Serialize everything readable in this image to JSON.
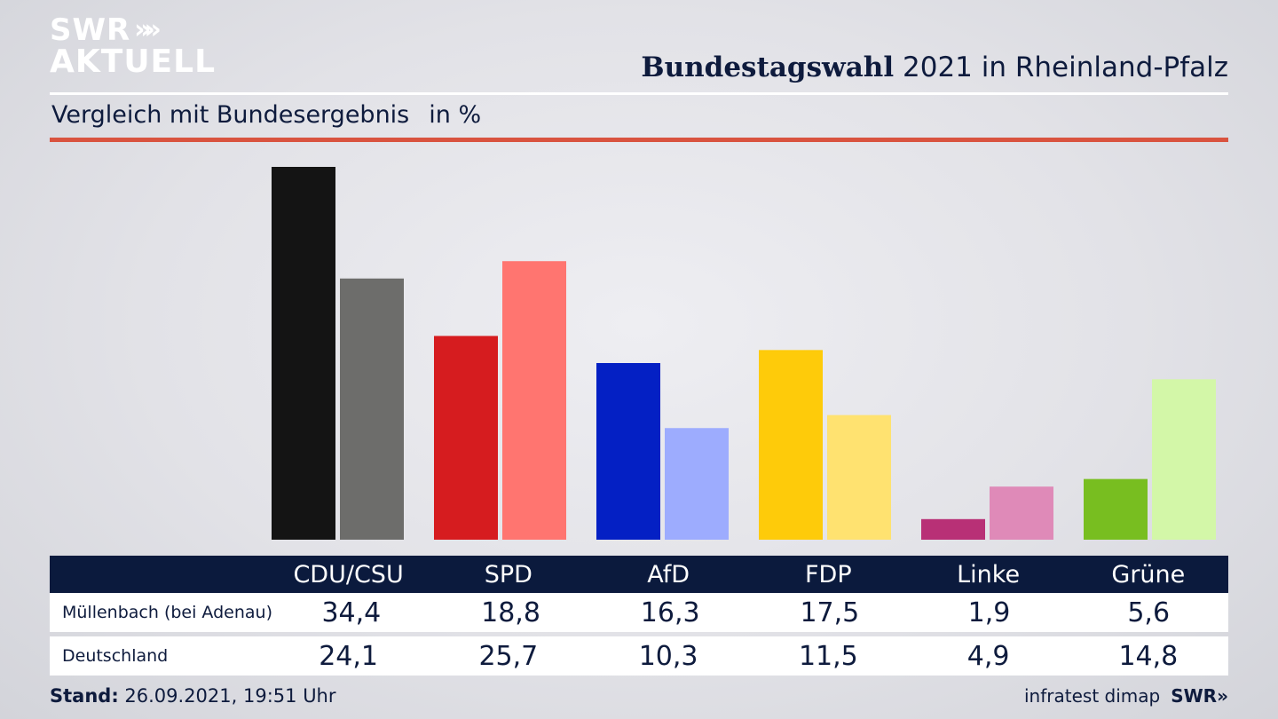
{
  "logo": {
    "line1": "SWR",
    "line2": "AKTUELL",
    "arrows": "»»"
  },
  "header": {
    "title_bold": "Bundestagswahl",
    "title_rest": "2021 in Rheinland-Pfalz"
  },
  "subtitle": {
    "text": "Vergleich mit Bundesergebnis",
    "unit": "in %"
  },
  "colors": {
    "navy": "#0b1a3d",
    "accent_red": "#d9533f",
    "local": [
      "#141414",
      "#d61c1f",
      "#0420c4",
      "#fecb0a",
      "#b83076",
      "#78be20"
    ],
    "national": [
      "#6d6d6b",
      "#ff7570",
      "#9dacfe",
      "#ffe270",
      "#df8ab8",
      "#d3f7a8"
    ]
  },
  "chart_data": {
    "type": "bar",
    "title": "Bundestagswahl 2021 in Rheinland-Pfalz",
    "subtitle": "Vergleich mit Bundesergebnis",
    "ylabel": "in %",
    "categories": [
      "CDU/CSU",
      "SPD",
      "AfD",
      "FDP",
      "Linke",
      "Grüne"
    ],
    "series": [
      {
        "name": "Müllenbach (bei Adenau)",
        "values": [
          34.4,
          18.8,
          16.3,
          17.5,
          1.9,
          5.6
        ]
      },
      {
        "name": "Deutschland",
        "values": [
          24.1,
          25.7,
          10.3,
          11.5,
          4.9,
          14.8
        ]
      }
    ],
    "ylim": [
      0,
      34.4
    ]
  },
  "table": {
    "parties": [
      "CDU/CSU",
      "SPD",
      "AfD",
      "FDP",
      "Linke",
      "Grüne"
    ],
    "rows": [
      {
        "label": "Müllenbach (bei Adenau)",
        "values": [
          "34,4",
          "18,8",
          "16,3",
          "17,5",
          "1,9",
          "5,6"
        ]
      },
      {
        "label": "Deutschland",
        "values": [
          "24,1",
          "25,7",
          "10,3",
          "11,5",
          "4,9",
          "14,8"
        ]
      }
    ]
  },
  "footer": {
    "stand_label": "Stand:",
    "stand_value": "26.09.2021, 19:51 Uhr",
    "source": "infratest dimap",
    "brand": "SWR»"
  }
}
